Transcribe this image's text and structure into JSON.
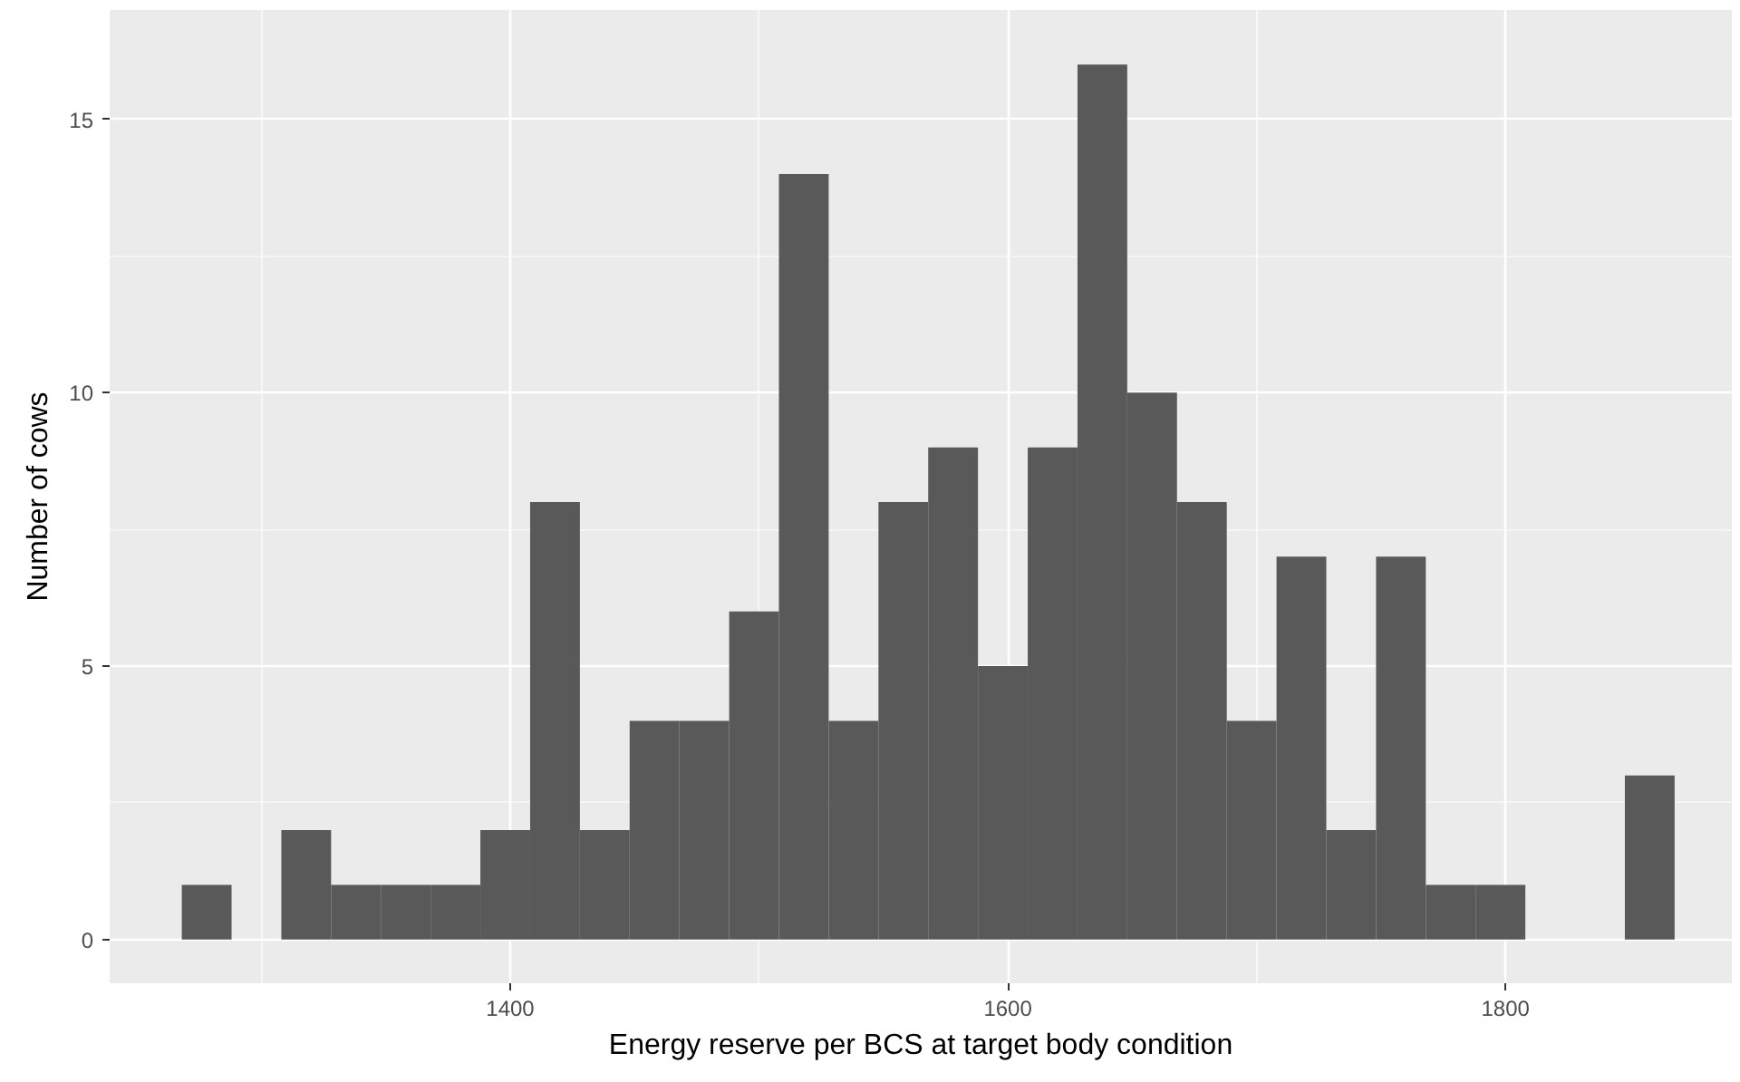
{
  "chart_data": {
    "type": "histogram",
    "xlabel": "Energy reserve per BCS at target body condition",
    "ylabel": "Number of cows",
    "bins": [
      1268,
      1288,
      1308,
      1328,
      1348,
      1368,
      1388,
      1408,
      1428,
      1448,
      1468,
      1488,
      1508,
      1528,
      1548,
      1568,
      1588,
      1608,
      1628,
      1648,
      1668,
      1688,
      1708,
      1728,
      1748,
      1768,
      1788,
      1808,
      1828,
      1848,
      1868
    ],
    "values": [
      1,
      0,
      2,
      1,
      1,
      1,
      2,
      8,
      2,
      4,
      4,
      6,
      14,
      4,
      8,
      9,
      5,
      9,
      16,
      10,
      8,
      4,
      7,
      2,
      7,
      1,
      1,
      0,
      0,
      3
    ],
    "color": "#595959",
    "xlim": [
      1239,
      1891
    ],
    "ylim": [
      -0.8,
      17.0
    ],
    "xticks": [
      1400,
      1600,
      1800
    ],
    "yticks": [
      0,
      5,
      10,
      15
    ],
    "grid": true
  }
}
